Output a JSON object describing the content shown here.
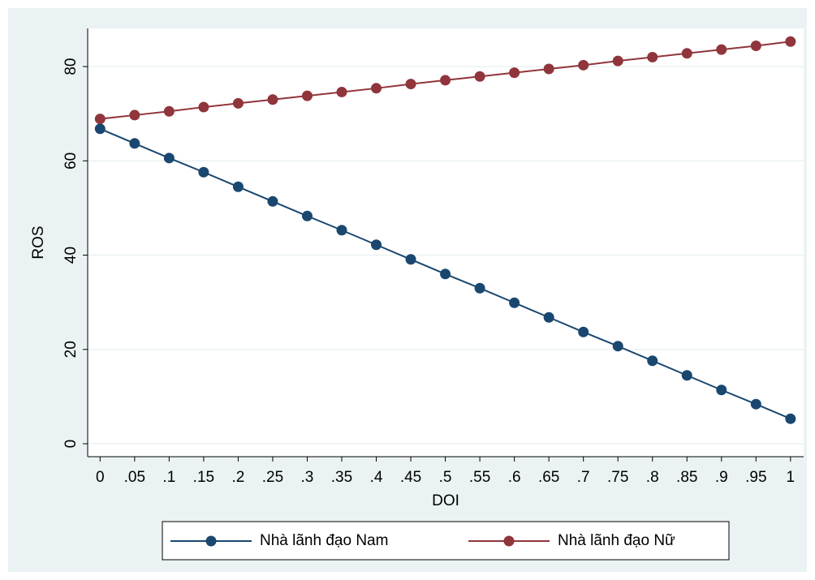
{
  "chart_data": {
    "type": "line",
    "x_label": "DOI",
    "y_label": "ROS",
    "x": [
      0,
      0.05,
      0.1,
      0.15,
      0.2,
      0.25,
      0.3,
      0.35,
      0.4,
      0.45,
      0.5,
      0.55,
      0.6,
      0.65,
      0.7,
      0.75,
      0.8,
      0.85,
      0.9,
      0.95,
      1
    ],
    "series": [
      {
        "name": "Nhà lãnh đạo Nam",
        "color": "#1a476f",
        "values": [
          66.8,
          63.7,
          60.6,
          57.6,
          54.5,
          51.4,
          48.3,
          45.3,
          42.2,
          39.1,
          36.0,
          33.0,
          29.9,
          26.8,
          23.7,
          20.7,
          17.6,
          14.5,
          11.4,
          8.4,
          5.3
        ]
      },
      {
        "name": "Nhà lãnh đạo Nữ",
        "color": "#90353b",
        "values": [
          68.9,
          69.7,
          70.5,
          71.4,
          72.2,
          73.0,
          73.8,
          74.6,
          75.4,
          76.3,
          77.1,
          77.9,
          78.7,
          79.5,
          80.3,
          81.2,
          82.0,
          82.8,
          83.6,
          84.4,
          85.3
        ]
      }
    ],
    "xlim": [
      -0.018,
      1.019
    ],
    "ylim": [
      -2.75,
      88.1
    ],
    "xticks": [
      0,
      {
        "value": 0.05,
        "label": ".05"
      },
      {
        "value": 0.1,
        "label": ".1"
      },
      {
        "value": 0.15,
        "label": ".15"
      },
      {
        "value": 0.2,
        "label": ".2"
      },
      {
        "value": 0.25,
        "label": ".25"
      },
      {
        "value": 0.3,
        "label": ".3"
      },
      {
        "value": 0.35,
        "label": ".35"
      },
      {
        "value": 0.4,
        "label": ".4"
      },
      {
        "value": 0.45,
        "label": ".45"
      },
      {
        "value": 0.5,
        "label": ".5"
      },
      {
        "value": 0.55,
        "label": ".55"
      },
      {
        "value": 0.6,
        "label": ".6"
      },
      {
        "value": 0.65,
        "label": ".65"
      },
      {
        "value": 0.7,
        "label": ".7"
      },
      {
        "value": 0.75,
        "label": ".75"
      },
      {
        "value": 0.8,
        "label": ".8"
      },
      {
        "value": 0.85,
        "label": ".85"
      },
      {
        "value": 0.9,
        "label": ".9"
      },
      {
        "value": 0.95,
        "label": ".95"
      },
      1
    ],
    "yticks": [
      0,
      20,
      40,
      60,
      80
    ],
    "grid": true,
    "legend": "bottom"
  }
}
